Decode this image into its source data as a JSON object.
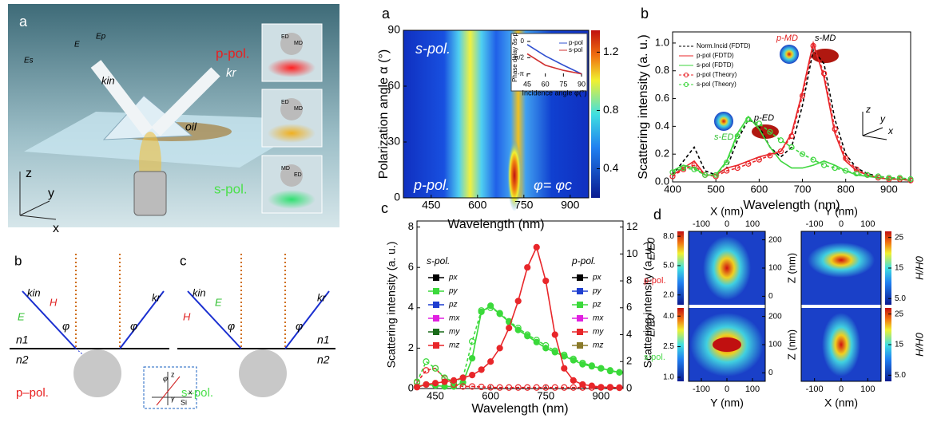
{
  "illustration": {
    "label": "a",
    "p_pol": "p-pol.",
    "s_pol": "s-pol.",
    "oil": "oil",
    "E": "E",
    "Ep": "Ep",
    "Es": "Es",
    "kin": "kin",
    "kr": "kr",
    "insets": [
      [
        "ED",
        "MD"
      ],
      [
        "ED",
        "MD"
      ],
      [
        "MD",
        "ED"
      ]
    ],
    "axes": [
      "z",
      "y",
      "x"
    ]
  },
  "diagram_b": {
    "label": "b",
    "kin": "kin",
    "field1": "H",
    "field2": "E",
    "kr": "kr",
    "phi": "φ",
    "n1": "n1",
    "n2": "n2",
    "pol": "p–pol."
  },
  "diagram_c": {
    "label": "c",
    "kin": "kin",
    "field1": "E",
    "field2": "H",
    "kr": "kr",
    "phi": "φ",
    "n1": "n1",
    "n2": "n2",
    "pol": "s–pol.",
    "inset": {
      "z": "z",
      "x": "x",
      "phi": "φ",
      "gamma": "γ",
      "si": "Si"
    }
  },
  "heatmap": {
    "label": "a",
    "xlabel": "Wavelength (nm)",
    "ylabel": "Polarization angle α (°)",
    "xlim": [
      360,
      960
    ],
    "xticks": [
      450,
      600,
      750,
      900
    ],
    "ylim": [
      0,
      90
    ],
    "yticks": [
      0,
      30,
      60,
      90
    ],
    "clim": [
      0.2,
      1.35
    ],
    "cticks": [
      0.4,
      0.8,
      1.2
    ],
    "s_pol": "s-pol.",
    "p_pol": "p-pol.",
    "condition": "φ= φc",
    "inset": {
      "ylabel": "Phase delay δs-p",
      "xlabel": "Incidence angle φ(°)",
      "xlim": [
        45,
        90
      ],
      "xticks": [
        45,
        60,
        75,
        90
      ],
      "ylim": [
        -3.4,
        0.3
      ],
      "yticks": [
        {
          "value": 0,
          "label": "0"
        },
        {
          "value": -1.5708,
          "label": "-π/2"
        },
        {
          "value": -3.1416,
          "label": "-π"
        }
      ],
      "x": [
        45,
        60,
        75,
        90
      ],
      "series": [
        {
          "name": "p-pol",
          "color": "#3050d0",
          "values": [
            -0.3,
            -1.4,
            -2.3,
            -3.14
          ]
        },
        {
          "name": "s-pol",
          "color": "#d03030",
          "values": [
            -1.2,
            -2.3,
            -2.8,
            -3.14
          ]
        }
      ]
    }
  },
  "spectra": {
    "label": "b",
    "xlabel": "Wavelength (nm)",
    "ylabel": "Scattering intensity (a. u.)",
    "xlim": [
      400,
      950
    ],
    "xticks": [
      400,
      500,
      600,
      700,
      800,
      900
    ],
    "ylim": [
      0,
      1.08
    ],
    "yticks": [
      {
        "value": 0,
        "label": "0.0"
      },
      {
        "value": 0.2,
        "label": "0.2"
      },
      {
        "value": 0.4,
        "label": "0.4"
      },
      {
        "value": 0.6,
        "label": "0.6"
      },
      {
        "value": 0.8,
        "label": "0.8"
      },
      {
        "value": 1,
        "label": "1.0"
      }
    ],
    "x": [
      400,
      425,
      450,
      475,
      500,
      525,
      550,
      575,
      600,
      625,
      650,
      675,
      700,
      725,
      750,
      775,
      800,
      825,
      850,
      875,
      900,
      925,
      950
    ],
    "series": [
      {
        "name": "Norm.Incid (FDTD)",
        "color": "#000000",
        "dash": true,
        "values": [
          0.05,
          0.15,
          0.25,
          0.08,
          0.05,
          0.1,
          0.3,
          0.45,
          0.4,
          0.25,
          0.18,
          0.25,
          0.55,
          0.95,
          0.85,
          0.45,
          0.2,
          0.1,
          0.06,
          0.04,
          0.03,
          0.02,
          0.02
        ]
      },
      {
        "name": "p-pol (FDTD)",
        "color": "#e8262a",
        "values": [
          0.05,
          0.1,
          0.15,
          0.05,
          0.05,
          0.1,
          0.12,
          0.15,
          0.18,
          0.2,
          0.22,
          0.35,
          0.65,
          1.0,
          0.75,
          0.35,
          0.15,
          0.08,
          0.05,
          0.03,
          0.02,
          0.02,
          0.01
        ]
      },
      {
        "name": "s-pol (FDTD)",
        "color": "#3ed63e",
        "values": [
          0.08,
          0.12,
          0.1,
          0.05,
          0.05,
          0.15,
          0.35,
          0.47,
          0.38,
          0.25,
          0.15,
          0.1,
          0.1,
          0.12,
          0.15,
          0.12,
          0.08,
          0.05,
          0.04,
          0.03,
          0.02,
          0.02,
          0.01
        ]
      },
      {
        "name": "p-pol (Theory)",
        "color": "#e8262a",
        "dash": true,
        "marker": "hollow",
        "values": [
          0.04,
          0.09,
          0.12,
          0.05,
          0.04,
          0.08,
          0.1,
          0.13,
          0.16,
          0.19,
          0.22,
          0.33,
          0.62,
          0.98,
          0.78,
          0.38,
          0.17,
          0.09,
          0.05,
          0.03,
          0.02,
          0.02,
          0.01
        ]
      },
      {
        "name": "s-pol (Theory)",
        "color": "#3ed63e",
        "dash": true,
        "marker": "hollow",
        "values": [
          0.07,
          0.1,
          0.09,
          0.05,
          0.05,
          0.14,
          0.33,
          0.45,
          0.42,
          0.36,
          0.3,
          0.25,
          0.2,
          0.16,
          0.12,
          0.1,
          0.08,
          0.06,
          0.05,
          0.04,
          0.03,
          0.03,
          0.02
        ]
      }
    ],
    "annotations": {
      "p_md": "p-MD",
      "s_md": "s-MD",
      "p_ed": "p-ED",
      "s_ed": "s-ED",
      "z": "z",
      "y": "y",
      "x": "x"
    }
  },
  "multipoles": {
    "label": "c",
    "xlabel": "Wavelength (nm)",
    "ylabel": "Scattering intensity (a. u.)",
    "y2label": "Scattering intensity (a. u.)",
    "xlim": [
      400,
      960
    ],
    "xticks": [
      450,
      600,
      750,
      900
    ],
    "ylim": [
      0,
      8.3
    ],
    "yticks": [
      0,
      2,
      4,
      6,
      8
    ],
    "y2lim": [
      0,
      12.45
    ],
    "y2ticks": [
      0,
      2,
      4,
      6,
      8,
      10,
      12
    ],
    "x": [
      400,
      425,
      450,
      475,
      500,
      525,
      550,
      575,
      600,
      625,
      650,
      675,
      700,
      725,
      750,
      775,
      800,
      825,
      850,
      875,
      900,
      925,
      950
    ],
    "series": [
      {
        "color": "#3bd93b",
        "marker": "filled",
        "values": [
          0.1,
          0.2,
          0.15,
          0.1,
          0.1,
          0.3,
          1.5,
          3.8,
          4.1,
          3.7,
          3.3,
          2.9,
          2.6,
          2.3,
          2.0,
          1.8,
          1.6,
          1.4,
          1.2,
          1.1,
          1.0,
          0.9,
          0.8
        ]
      },
      {
        "color": "#e8262a",
        "marker": "hollow",
        "dash": true,
        "values": [
          0.3,
          0.9,
          1.0,
          0.5,
          0.2,
          0.1,
          0.1,
          0.08,
          0.06,
          0.05,
          0.05,
          0.05,
          0.05,
          0.05,
          0.05,
          0.05,
          0.05,
          0.05,
          0.05,
          0.05,
          0.05,
          0.05,
          0.05
        ]
      },
      {
        "color": "#3bd93b",
        "marker": "hollow",
        "dash": true,
        "axis": "y2",
        "values": [
          0.5,
          2.0,
          1.5,
          0.8,
          0.5,
          0.8,
          3.5,
          5.8,
          6.0,
          5.6,
          5.0,
          4.5,
          4.0,
          3.6,
          3.2,
          2.8,
          2.5,
          2.2,
          1.9,
          1.7,
          1.5,
          1.3,
          1.2
        ]
      },
      {
        "color": "#e8262a",
        "marker": "filled",
        "axis": "y2",
        "values": [
          0.1,
          0.3,
          0.4,
          0.5,
          0.6,
          0.8,
          1.0,
          1.4,
          2.0,
          3.0,
          4.5,
          6.5,
          9.0,
          10.5,
          8.0,
          4.0,
          1.5,
          0.6,
          0.3,
          0.2,
          0.1,
          0.1,
          0.05
        ]
      }
    ],
    "legend_s_title": "s-pol.",
    "legend_p_title": "p-pol.",
    "legend_s": [
      {
        "name": "px",
        "color": "#000000"
      },
      {
        "name": "py",
        "color": "#3bd93b"
      },
      {
        "name": "pz",
        "color": "#1f3fd0"
      },
      {
        "name": "mx",
        "color": "#e020e0"
      },
      {
        "name": "my",
        "color": "#1a6b1a"
      },
      {
        "name": "mz",
        "color": "#e8262a"
      }
    ],
    "legend_p": [
      {
        "name": "px",
        "color": "#000000"
      },
      {
        "name": "py",
        "color": "#1f3fd0"
      },
      {
        "name": "pz",
        "color": "#3bd93b"
      },
      {
        "name": "mx",
        "color": "#e020e0"
      },
      {
        "name": "my",
        "color": "#e8262a"
      },
      {
        "name": "mz",
        "color": "#8a7a2a"
      }
    ]
  },
  "fields": {
    "label": "d",
    "top_xlabels": [
      "X (nm)",
      "Y (nm)"
    ],
    "bottom_xlabels": [
      "Y (nm)",
      "X (nm)"
    ],
    "xlim": [
      -150,
      150
    ],
    "xticks": [
      -100,
      0,
      100
    ],
    "zlabel": "Z (nm)",
    "zlim": [
      -30,
      230
    ],
    "zticks": [
      0,
      100,
      200
    ],
    "rows": [
      {
        "pol": "p-pol.",
        "pol_color": "#e8262a",
        "e_label": "E/E0",
        "e_lim": [
          1.0,
          8.5
        ],
        "e_ticks": [
          {
            "value": 2,
            "label": "2.0"
          },
          {
            "value": 5,
            "label": "5.0"
          },
          {
            "value": 8,
            "label": "8.0"
          }
        ],
        "h_label": "H/H0",
        "h_lim": [
          3,
          27
        ],
        "h_ticks": [
          {
            "value": 5,
            "label": "5.0"
          },
          15,
          25
        ]
      },
      {
        "pol": "s-pol.",
        "pol_color": "#4cd94c",
        "e_label": "E/E0",
        "e_lim": [
          0.8,
          4.4
        ],
        "e_ticks": [
          {
            "value": 1,
            "label": "1.0"
          },
          {
            "value": 2.5,
            "label": "2.5"
          },
          {
            "value": 4,
            "label": "4.0"
          }
        ],
        "h_label": "H/H0",
        "h_lim": [
          3,
          27
        ],
        "h_ticks": [
          {
            "value": 5,
            "label": "5.0"
          },
          15,
          25
        ]
      }
    ]
  }
}
